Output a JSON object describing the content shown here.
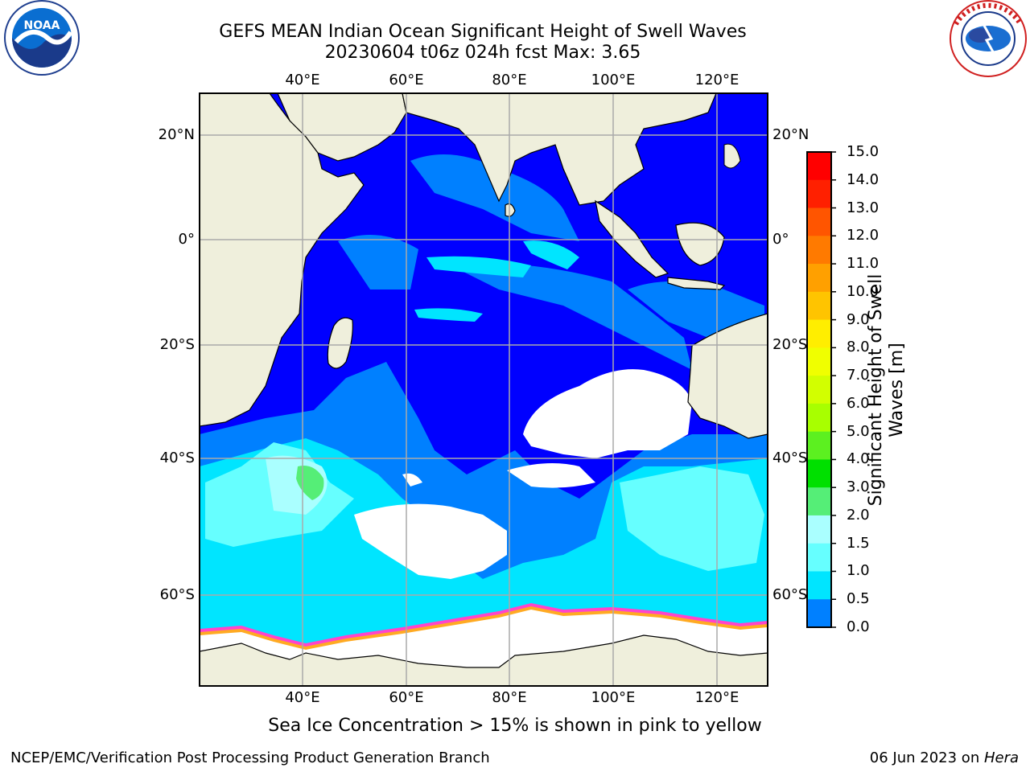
{
  "title": {
    "line1": "GEFS MEAN Indian Ocean Significant Height of Swell Waves",
    "line2": "20230604 t06z 024h fcst   Max: 3.65"
  },
  "map": {
    "lon_labels": [
      "40°E",
      "60°E",
      "80°E",
      "100°E",
      "120°E"
    ],
    "lat_labels": [
      "20°N",
      "0°",
      "20°S",
      "40°S",
      "60°S"
    ],
    "colors": {
      "land": "#efefdc",
      "ocean_low": "#0000ff",
      "swell_medium": "#0080ff",
      "swell_high": "#00e5ff",
      "swell_higher": "#66ffff",
      "swell_peak": "#55ee77",
      "sea_ice": "#ffffff",
      "ice_edge_pink": "#ff44cc",
      "ice_edge_orange": "#ffaa22",
      "grid": "#aaaaaa"
    }
  },
  "colorbar": {
    "title_line1": "Significant Height of Swell",
    "title_line2": "Waves [m]",
    "ticks": [
      "15.0",
      "14.0",
      "13.0",
      "12.0",
      "11.0",
      "10.0",
      "9.0",
      "8.0",
      "7.0",
      "6.0",
      "5.0",
      "4.0",
      "3.0",
      "2.0",
      "1.5",
      "1.0",
      "0.5",
      "0.0"
    ],
    "colors": [
      "#ff0000",
      "#ff2000",
      "#ff5500",
      "#ff7a00",
      "#ffa000",
      "#ffc400",
      "#ffee00",
      "#f0ff00",
      "#d2ff00",
      "#a8ff00",
      "#5cf020",
      "#00e000",
      "#55ee77",
      "#aaffff",
      "#66ffff",
      "#00e5ff",
      "#0080ff",
      "#0000ff"
    ]
  },
  "logos": {
    "left": {
      "text": "NOAA",
      "ring_text": "NATIONAL OCEANIC AND ATMOSPHERIC ADMINISTRATION · U.S. DEPARTMENT OF COMMERCE"
    },
    "right": {
      "ring_text": "NATIONAL WEATHER SERVICE"
    }
  },
  "caption": "Sea Ice Concentration > 15% is shown in pink to yellow",
  "footer": {
    "left": "NCEP/EMC/Verification Post Processing Product Generation Branch",
    "right_date": "06 Jun 2023 on ",
    "right_host": "Hera"
  }
}
